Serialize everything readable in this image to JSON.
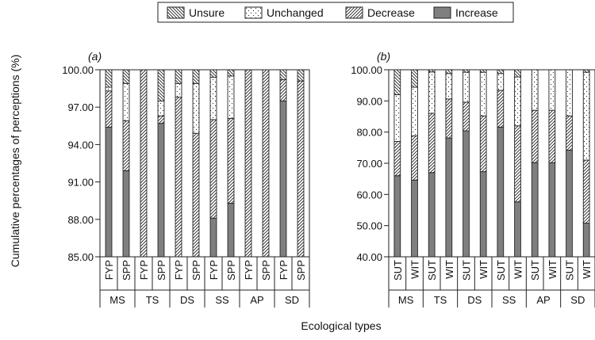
{
  "figure": {
    "ylabel": "Cumulative percentages of perceptions (%)",
    "xlabel": "Ecological types"
  },
  "legend": {
    "position": "top-center",
    "items": [
      {
        "key": "unsure",
        "label": "Unsure",
        "pattern": "unsure"
      },
      {
        "key": "unchanged",
        "label": "Unchanged",
        "pattern": "unchanged"
      },
      {
        "key": "decrease",
        "label": "Decrease",
        "pattern": "decrease"
      },
      {
        "key": "increase",
        "label": "Increase",
        "pattern": "increase"
      }
    ]
  },
  "colors": {
    "increase": "#7f7f7f",
    "frame": "#222222",
    "background": "#ffffff"
  },
  "chart_data": [
    {
      "type": "bar",
      "stacked": true,
      "panel_label": "(a)",
      "ylim": [
        85,
        100
      ],
      "yticks": [
        "85.00",
        "88.00",
        "91.00",
        "94.00",
        "97.00",
        "100.00"
      ],
      "groups": [
        "MS",
        "TS",
        "DS",
        "SS",
        "AP",
        "SD"
      ],
      "subgroups": [
        "FYP",
        "SPP"
      ],
      "bars": [
        {
          "group": "MS",
          "sub": "FYP",
          "increase": 95.4,
          "decrease": 2.9,
          "unchanged": 0.3,
          "unsure": 1.4
        },
        {
          "group": "MS",
          "sub": "SPP",
          "increase": 91.9,
          "decrease": 4.0,
          "unchanged": 3.0,
          "unsure": 1.1
        },
        {
          "group": "TS",
          "sub": "FYP",
          "increase": 0,
          "decrease": 100.0,
          "unchanged": 0,
          "unsure": 0
        },
        {
          "group": "TS",
          "sub": "SPP",
          "increase": 95.7,
          "decrease": 0.6,
          "unchanged": 1.2,
          "unsure": 2.5
        },
        {
          "group": "DS",
          "sub": "FYP",
          "increase": 0,
          "decrease": 97.8,
          "unchanged": 1.1,
          "unsure": 1.1
        },
        {
          "group": "DS",
          "sub": "SPP",
          "increase": 0,
          "decrease": 94.9,
          "unchanged": 4.0,
          "unsure": 1.1
        },
        {
          "group": "SS",
          "sub": "FYP",
          "increase": 88.1,
          "decrease": 7.9,
          "unchanged": 3.4,
          "unsure": 0.6
        },
        {
          "group": "SS",
          "sub": "SPP",
          "increase": 89.3,
          "decrease": 6.8,
          "unchanged": 3.4,
          "unsure": 0.5
        },
        {
          "group": "AP",
          "sub": "FYP",
          "increase": 0,
          "decrease": 100.0,
          "unchanged": 0,
          "unsure": 0
        },
        {
          "group": "AP",
          "sub": "SPP",
          "increase": 0,
          "decrease": 100.0,
          "unchanged": 0,
          "unsure": 0
        },
        {
          "group": "SD",
          "sub": "FYP",
          "increase": 97.5,
          "decrease": 1.7,
          "unchanged": 0,
          "unsure": 0.8
        },
        {
          "group": "SD",
          "sub": "SPP",
          "increase": 0,
          "decrease": 99.1,
          "unchanged": 0,
          "unsure": 0.9
        }
      ]
    },
    {
      "type": "bar",
      "stacked": true,
      "panel_label": "(b)",
      "ylim": [
        40,
        100
      ],
      "yticks": [
        "40.00",
        "50.00",
        "60.00",
        "70.00",
        "80.00",
        "90.00",
        "100.00"
      ],
      "groups": [
        "MS",
        "TS",
        "DS",
        "SS",
        "AP",
        "SD"
      ],
      "subgroups": [
        "SUT",
        "WIT"
      ],
      "bars": [
        {
          "group": "MS",
          "sub": "SUT",
          "increase": 66.0,
          "decrease": 11.0,
          "unchanged": 15.0,
          "unsure": 8.0
        },
        {
          "group": "MS",
          "sub": "WIT",
          "increase": 64.6,
          "decrease": 14.2,
          "unchanged": 15.6,
          "unsure": 5.6
        },
        {
          "group": "TS",
          "sub": "SUT",
          "increase": 67.0,
          "decrease": 19.0,
          "unchanged": 13.3,
          "unsure": 0.7
        },
        {
          "group": "TS",
          "sub": "WIT",
          "increase": 78.1,
          "decrease": 12.5,
          "unchanged": 8.2,
          "unsure": 1.2
        },
        {
          "group": "DS",
          "sub": "SUT",
          "increase": 80.4,
          "decrease": 9.2,
          "unchanged": 9.6,
          "unsure": 0.8
        },
        {
          "group": "DS",
          "sub": "WIT",
          "increase": 67.3,
          "decrease": 17.9,
          "unchanged": 14.0,
          "unsure": 0.8
        },
        {
          "group": "SS",
          "sub": "SUT",
          "increase": 81.6,
          "decrease": 11.8,
          "unchanged": 5.4,
          "unsure": 1.2
        },
        {
          "group": "SS",
          "sub": "WIT",
          "increase": 57.6,
          "decrease": 24.4,
          "unchanged": 15.7,
          "unsure": 2.3
        },
        {
          "group": "AP",
          "sub": "SUT",
          "increase": 70.2,
          "decrease": 16.8,
          "unchanged": 13.0,
          "unsure": 0
        },
        {
          "group": "AP",
          "sub": "WIT",
          "increase": 70.2,
          "decrease": 16.8,
          "unchanged": 13.0,
          "unsure": 0
        },
        {
          "group": "SD",
          "sub": "SUT",
          "increase": 74.2,
          "decrease": 11.0,
          "unchanged": 14.8,
          "unsure": 0
        },
        {
          "group": "SD",
          "sub": "WIT",
          "increase": 50.8,
          "decrease": 20.2,
          "unchanged": 28.2,
          "unsure": 0.8
        }
      ]
    }
  ]
}
